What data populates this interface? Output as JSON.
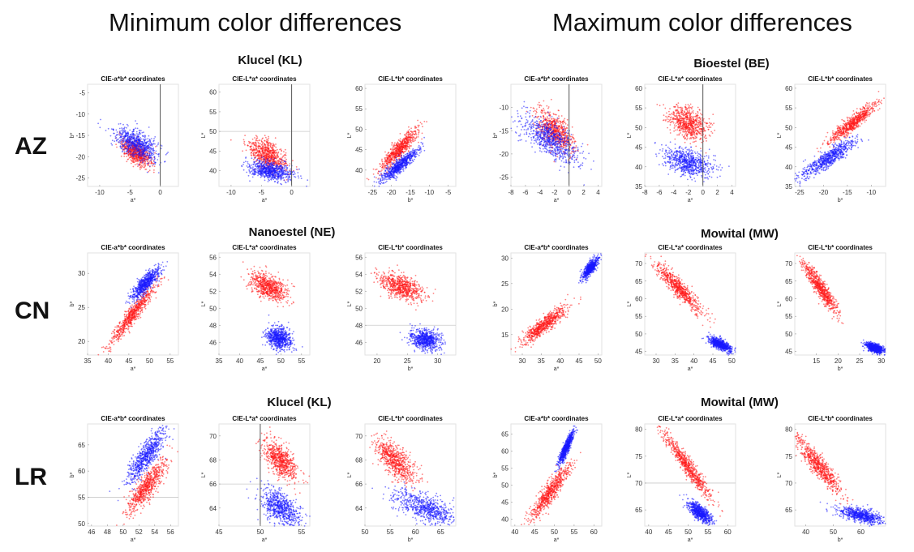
{
  "headings": {
    "left": "Minimum color differences",
    "right": "Maximum color differences"
  },
  "rows": [
    "AZ",
    "CN",
    "LR"
  ],
  "groups": [
    {
      "label": "Klucel (KL)"
    },
    {
      "label": "Bioestel (BE)"
    },
    {
      "label": "Nanoestel (NE)"
    },
    {
      "label": "Mowital (MW)"
    },
    {
      "label": "Klucel (KL)"
    },
    {
      "label": "Mowital (MW)"
    }
  ],
  "colors": {
    "series1": "#ff1a1a",
    "series2": "#1a1aff",
    "refline": "#555555"
  },
  "chart_data": [
    {
      "type": "scatter",
      "title": "CIE-a*b* coordinates",
      "xlabel": "a*",
      "ylabel": "b*",
      "xlim": [
        -12,
        3
      ],
      "ylim": [
        -27,
        -3
      ],
      "xticks": [
        -10,
        -5,
        0
      ],
      "yticks": [
        -25,
        -20,
        -15,
        -10,
        -5
      ],
      "vline": 0,
      "hline": null,
      "series": [
        {
          "cx": -4,
          "cy": -19,
          "sx": 1.2,
          "sy": 1.6,
          "corr": -0.6
        },
        {
          "cx": -4,
          "cy": -17,
          "sx": 1.8,
          "sy": 2.0,
          "corr": -0.6
        }
      ]
    },
    {
      "type": "scatter",
      "title": "CIE-L*a* coordinates",
      "xlabel": "a*",
      "ylabel": "L*",
      "xlim": [
        -12,
        3
      ],
      "ylim": [
        36,
        62
      ],
      "xticks": [
        -10,
        -5,
        0
      ],
      "yticks": [
        40,
        45,
        50,
        55,
        60
      ],
      "vline": 0,
      "hline": 50,
      "series": [
        {
          "cx": -4,
          "cy": 44,
          "sx": 1.5,
          "sy": 2.0,
          "corr": -0.5
        },
        {
          "cx": -3.5,
          "cy": 40,
          "sx": 1.8,
          "sy": 1.2,
          "corr": -0.4
        }
      ]
    },
    {
      "type": "scatter",
      "title": "CIE-L*b* coordinates",
      "xlabel": "b*",
      "ylabel": "L*",
      "xlim": [
        -27,
        -3
      ],
      "ylim": [
        36,
        61
      ],
      "xticks": [
        -25,
        -20,
        -15,
        -10,
        -5
      ],
      "yticks": [
        40,
        45,
        50,
        55,
        60
      ],
      "vline": null,
      "hline": null,
      "series": [
        {
          "cx": -18,
          "cy": 45,
          "sx": 2.5,
          "sy": 2.5,
          "corr": 0.9
        },
        {
          "cx": -18,
          "cy": 41,
          "sx": 2.5,
          "sy": 2.0,
          "corr": 0.9
        }
      ]
    },
    {
      "type": "scatter",
      "title": "CIE-a*b* coordinates",
      "xlabel": "a*",
      "ylabel": "b*",
      "xlim": [
        -8,
        4.5
      ],
      "ylim": [
        -27,
        -5
      ],
      "xticks": [
        -8,
        -6,
        -4,
        -2,
        0,
        2,
        4
      ],
      "yticks": [
        -25,
        -20,
        -15,
        -10
      ],
      "vline": 0,
      "hline": null,
      "series": [
        {
          "cx": -2,
          "cy": -15,
          "sx": 1.3,
          "sy": 2.2,
          "corr": -0.6
        },
        {
          "cx": -2.5,
          "cy": -17,
          "sx": 2.0,
          "sy": 2.5,
          "corr": -0.7
        }
      ]
    },
    {
      "type": "scatter",
      "title": "CIE-L*a* coordinates",
      "xlabel": "a*",
      "ylabel": "L*",
      "xlim": [
        -8,
        4.5
      ],
      "ylim": [
        35,
        61
      ],
      "xticks": [
        -8,
        -6,
        -4,
        -2,
        0,
        2,
        4
      ],
      "yticks": [
        35,
        40,
        45,
        50,
        55,
        60
      ],
      "vline": 0,
      "hline": null,
      "series": [
        {
          "cx": -2,
          "cy": 51,
          "sx": 1.3,
          "sy": 2.0,
          "corr": -0.4
        },
        {
          "cx": -2,
          "cy": 41,
          "sx": 1.7,
          "sy": 1.8,
          "corr": -0.4
        }
      ]
    },
    {
      "type": "scatter",
      "title": "CIE-L*b* coordinates",
      "xlabel": "b*",
      "ylabel": "L*",
      "xlim": [
        -26,
        -7
      ],
      "ylim": [
        35,
        61
      ],
      "xticks": [
        -25,
        -20,
        -15,
        -10
      ],
      "yticks": [
        35,
        40,
        45,
        50,
        55,
        60
      ],
      "vline": null,
      "hline": null,
      "series": [
        {
          "cx": -14,
          "cy": 51,
          "sx": 2.5,
          "sy": 2.5,
          "corr": 0.92
        },
        {
          "cx": -19,
          "cy": 42,
          "sx": 3.0,
          "sy": 2.5,
          "corr": 0.9
        }
      ]
    },
    {
      "type": "scatter",
      "title": "CIE-a*b* coordinates",
      "xlabel": "a*",
      "ylabel": "b*",
      "xlim": [
        35,
        57
      ],
      "ylim": [
        18,
        33
      ],
      "xticks": [
        35,
        40,
        45,
        50,
        55
      ],
      "yticks": [
        20,
        25,
        30
      ],
      "vline": null,
      "hline": null,
      "series": [
        {
          "cx": 46,
          "cy": 24,
          "sx": 2.8,
          "sy": 2.2,
          "corr": 0.95
        },
        {
          "cx": 49,
          "cy": 28.5,
          "sx": 1.8,
          "sy": 1.2,
          "corr": 0.85
        }
      ]
    },
    {
      "type": "scatter",
      "title": "CIE-L*a* coordinates",
      "xlabel": "a*",
      "ylabel": "L*",
      "xlim": [
        35,
        57
      ],
      "ylim": [
        44.5,
        56.5
      ],
      "xticks": [
        35,
        40,
        45,
        50,
        55
      ],
      "yticks": [
        46,
        48,
        50,
        52,
        54,
        56
      ],
      "vline": null,
      "hline": null,
      "series": [
        {
          "cx": 47,
          "cy": 52.5,
          "sx": 2.2,
          "sy": 0.8,
          "corr": -0.5
        },
        {
          "cx": 49.5,
          "cy": 46.5,
          "sx": 1.5,
          "sy": 0.7,
          "corr": -0.2
        }
      ]
    },
    {
      "type": "scatter",
      "title": "CIE-L*b* coordinates",
      "xlabel": "b*",
      "ylabel": "L*",
      "xlim": [
        18,
        33
      ],
      "ylim": [
        44.5,
        56.5
      ],
      "xticks": [
        20,
        25,
        30
      ],
      "yticks": [
        46,
        48,
        50,
        52,
        54,
        56
      ],
      "vline": null,
      "hline": 48,
      "series": [
        {
          "cx": 24,
          "cy": 52.5,
          "sx": 1.8,
          "sy": 0.8,
          "corr": -0.5
        },
        {
          "cx": 28,
          "cy": 46.3,
          "sx": 1.3,
          "sy": 0.6,
          "corr": -0.2
        }
      ]
    },
    {
      "type": "scatter",
      "title": "CIE-a*b* coordinates",
      "xlabel": "a*",
      "ylabel": "b*",
      "xlim": [
        27,
        51
      ],
      "ylim": [
        11,
        31
      ],
      "xticks": [
        30,
        35,
        40,
        45,
        50
      ],
      "yticks": [
        15,
        20,
        25,
        30
      ],
      "vline": null,
      "hline": null,
      "series": [
        {
          "cx": 36,
          "cy": 17,
          "sx": 3.0,
          "sy": 1.8,
          "corr": 0.9
        },
        {
          "cx": 48,
          "cy": 28,
          "sx": 1.0,
          "sy": 1.0,
          "corr": 0.8
        }
      ]
    },
    {
      "type": "scatter",
      "title": "CIE-L*a* coordinates",
      "xlabel": "a*",
      "ylabel": "L*",
      "xlim": [
        27,
        51
      ],
      "ylim": [
        44,
        73
      ],
      "xticks": [
        30,
        35,
        40,
        45,
        50
      ],
      "yticks": [
        45,
        50,
        55,
        60,
        65,
        70
      ],
      "vline": null,
      "hline": null,
      "series": [
        {
          "cx": 36,
          "cy": 63,
          "sx": 3.0,
          "sy": 3.5,
          "corr": -0.92
        },
        {
          "cx": 47,
          "cy": 47,
          "sx": 1.5,
          "sy": 1.0,
          "corr": -0.7
        }
      ]
    },
    {
      "type": "scatter",
      "title": "CIE-L*b* coordinates",
      "xlabel": "b*",
      "ylabel": "L*",
      "xlim": [
        10,
        31
      ],
      "ylim": [
        44,
        73
      ],
      "xticks": [
        15,
        20,
        25,
        30
      ],
      "yticks": [
        45,
        50,
        55,
        60,
        65,
        70
      ],
      "vline": null,
      "hline": null,
      "series": [
        {
          "cx": 16,
          "cy": 63,
          "sx": 2.0,
          "sy": 3.5,
          "corr": -0.92
        },
        {
          "cx": 28.5,
          "cy": 46,
          "sx": 1.0,
          "sy": 0.7,
          "corr": -0.5
        }
      ]
    },
    {
      "type": "scatter",
      "title": "CIE-a*b* coordinates",
      "xlabel": "a*",
      "ylabel": "b*",
      "xlim": [
        45.5,
        57
      ],
      "ylim": [
        49.5,
        69
      ],
      "xticks": [
        46,
        48,
        50,
        52,
        54,
        56
      ],
      "yticks": [
        50,
        55,
        60,
        65
      ],
      "vline": null,
      "hline": 55,
      "series": [
        {
          "cx": 53,
          "cy": 57,
          "sx": 1.2,
          "sy": 2.5,
          "corr": 0.85
        },
        {
          "cx": 53,
          "cy": 63,
          "sx": 1.2,
          "sy": 2.5,
          "corr": 0.85
        }
      ]
    },
    {
      "type": "scatter",
      "title": "CIE-L*a* coordinates",
      "xlabel": "a*",
      "ylabel": "L*",
      "xlim": [
        45,
        56
      ],
      "ylim": [
        62.5,
        71
      ],
      "xticks": [
        45,
        50,
        55
      ],
      "yticks": [
        64,
        66,
        68,
        70
      ],
      "vline": 50,
      "hline": 66,
      "series": [
        {
          "cx": 52.5,
          "cy": 68,
          "sx": 1.0,
          "sy": 0.8,
          "corr": -0.6
        },
        {
          "cx": 52.5,
          "cy": 64,
          "sx": 1.2,
          "sy": 0.8,
          "corr": -0.5
        }
      ]
    },
    {
      "type": "scatter",
      "title": "CIE-L*b* coordinates",
      "xlabel": "b*",
      "ylabel": "L*",
      "xlim": [
        50,
        68
      ],
      "ylim": [
        62.5,
        71
      ],
      "xticks": [
        50,
        55,
        60,
        65
      ],
      "yticks": [
        64,
        66,
        68,
        70
      ],
      "vline": null,
      "hline": null,
      "series": [
        {
          "cx": 56,
          "cy": 68,
          "sx": 2.0,
          "sy": 0.9,
          "corr": -0.7
        },
        {
          "cx": 62,
          "cy": 64,
          "sx": 3.0,
          "sy": 0.7,
          "corr": -0.6
        }
      ]
    },
    {
      "type": "scatter",
      "title": "CIE-a*b* coordinates",
      "xlabel": "a*",
      "ylabel": "b*",
      "xlim": [
        39,
        62
      ],
      "ylim": [
        38,
        68
      ],
      "xticks": [
        40,
        45,
        50,
        55,
        60
      ],
      "yticks": [
        40,
        45,
        50,
        55,
        60,
        65
      ],
      "vline": null,
      "hline": null,
      "series": [
        {
          "cx": 49,
          "cy": 48,
          "sx": 2.5,
          "sy": 4.0,
          "corr": 0.9
        },
        {
          "cx": 53,
          "cy": 61,
          "sx": 1.0,
          "sy": 2.5,
          "corr": 0.9
        }
      ]
    },
    {
      "type": "scatter",
      "title": "CIE-L*a* coordinates",
      "xlabel": "a*",
      "ylabel": "L*",
      "xlim": [
        39,
        62
      ],
      "ylim": [
        62,
        81
      ],
      "xticks": [
        40,
        45,
        50,
        55,
        60
      ],
      "yticks": [
        65,
        70,
        75,
        80
      ],
      "vline": null,
      "hline": 70,
      "series": [
        {
          "cx": 50,
          "cy": 73,
          "sx": 3.0,
          "sy": 3.0,
          "corr": -0.95
        },
        {
          "cx": 53,
          "cy": 64.5,
          "sx": 1.5,
          "sy": 1.0,
          "corr": -0.7
        }
      ]
    },
    {
      "type": "scatter",
      "title": "CIE-L*b* coordinates",
      "xlabel": "b*",
      "ylabel": "L*",
      "xlim": [
        36,
        69
      ],
      "ylim": [
        62,
        81
      ],
      "xticks": [
        40,
        50,
        60
      ],
      "yticks": [
        65,
        70,
        75,
        80
      ],
      "vline": null,
      "hline": null,
      "series": [
        {
          "cx": 45,
          "cy": 73,
          "sx": 4.0,
          "sy": 2.5,
          "corr": -0.9
        },
        {
          "cx": 60,
          "cy": 64,
          "sx": 4.0,
          "sy": 0.8,
          "corr": -0.6
        }
      ]
    }
  ]
}
